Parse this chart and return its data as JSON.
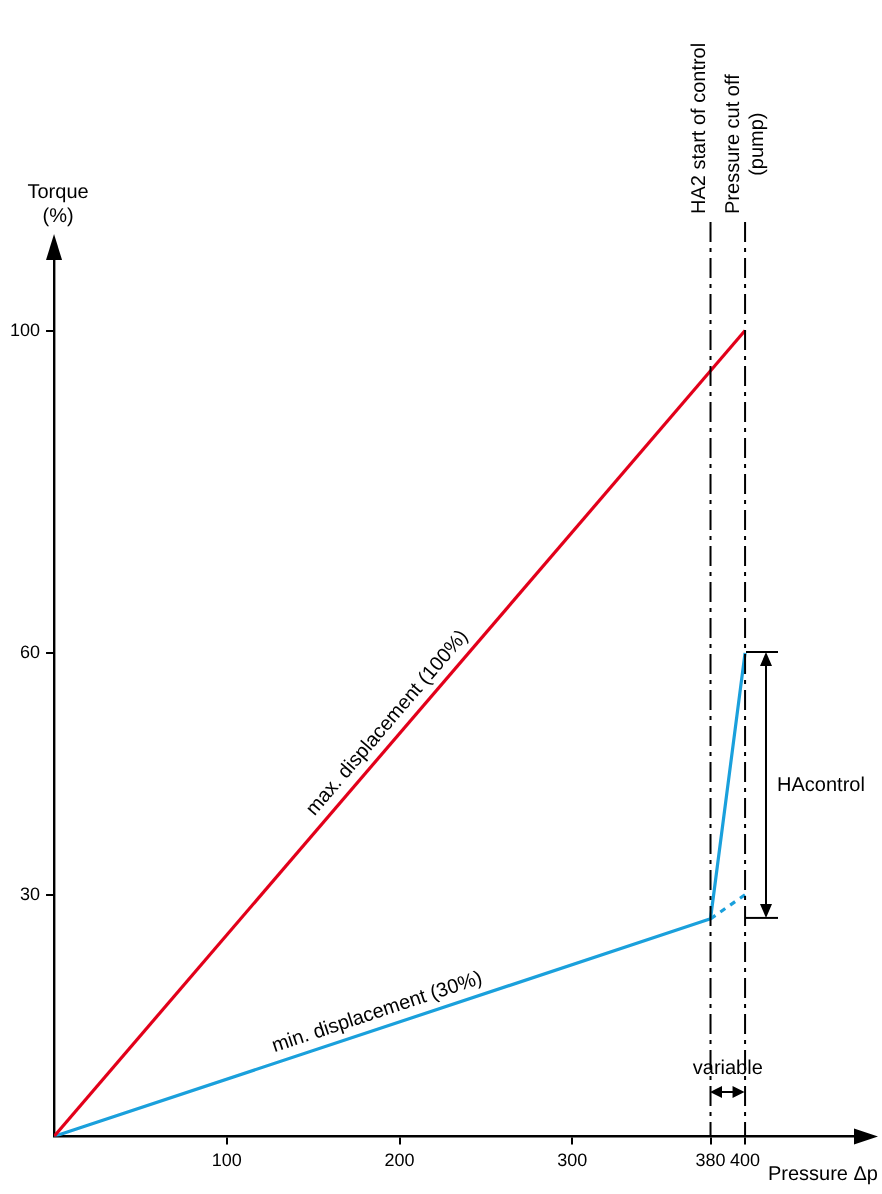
{
  "chart_data": {
    "type": "line",
    "xlabel": "Pressure Δp",
    "ylabel": "Torque\n(%)",
    "xlim": [
      0,
      470
    ],
    "ylim": [
      0,
      110
    ],
    "xticks": [
      100,
      200,
      300,
      380,
      400
    ],
    "yticks": [
      30,
      60,
      100
    ],
    "series": [
      {
        "name": "max. displacement (100%)",
        "color": "#e2001a",
        "x": [
          0,
          400
        ],
        "values": [
          0,
          100
        ]
      },
      {
        "name": "min. displacement (30%)",
        "color": "#1aa0dc",
        "x": [
          0,
          380,
          400
        ],
        "values": [
          0,
          27,
          60
        ]
      },
      {
        "color": "#1aa0dc",
        "x": [
          380,
          400
        ],
        "values": [
          27,
          30
        ],
        "line_style": "dotted"
      }
    ],
    "ref_lines": [
      {
        "axis": "x",
        "value": 380,
        "label": "HA2 start of control",
        "line_style": "dashed",
        "color": "#000000"
      },
      {
        "axis": "x",
        "value": 400,
        "label": "Pressure cut off\n(pump)",
        "line_style": "dashed",
        "color": "#000000"
      }
    ],
    "annotations": [
      "HAcontrol",
      "variable"
    ],
    "grid": false,
    "legend": false,
    "marker": "none"
  }
}
